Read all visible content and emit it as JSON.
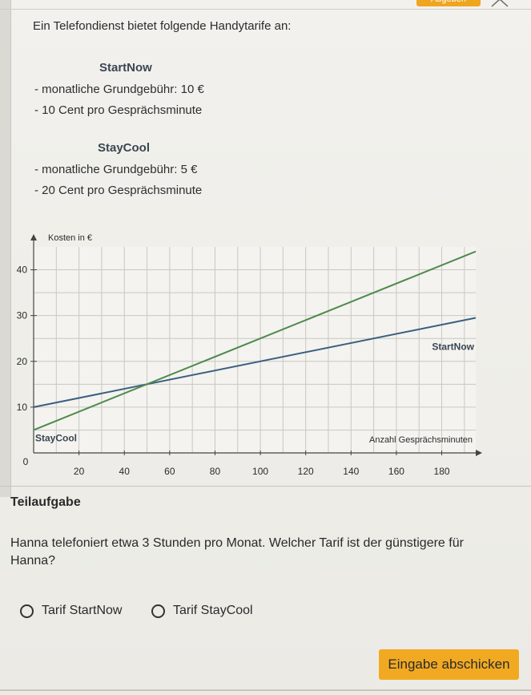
{
  "header": {
    "button_label": "Abgeben"
  },
  "task": {
    "intro": "Ein Telefondienst bietet folgende Handytarife an:",
    "tariffs": [
      {
        "name": "StartNow",
        "lines": [
          "- monatliche Grundgebühr: 10 €",
          "- 10 Cent pro Gesprächsminute"
        ]
      },
      {
        "name": "StayCool",
        "lines": [
          "- monatliche Grundgebühr: 5 €",
          "- 20 Cent pro Gesprächsminute"
        ]
      }
    ]
  },
  "chart_data": {
    "type": "line",
    "ylabel": "Kosten in €",
    "xlabel": "Anzahl Gesprächsminuten",
    "xlim": [
      0,
      195
    ],
    "ylim": [
      0,
      45
    ],
    "x_ticks": [
      20,
      40,
      60,
      80,
      100,
      120,
      140,
      160,
      180
    ],
    "y_ticks": [
      10,
      20,
      30,
      40
    ],
    "origin_label": "0",
    "grid": true,
    "series": [
      {
        "name": "StartNow",
        "color": "#3b5f80",
        "x": [
          0,
          200
        ],
        "y": [
          10,
          30
        ]
      },
      {
        "name": "StayCool",
        "color": "#4e8a4e",
        "x": [
          0,
          200
        ],
        "y": [
          5,
          45
        ]
      }
    ]
  },
  "question": {
    "heading": "Teilaufgabe",
    "text": "Hanna telefoniert etwa 3 Stunden pro Monat. Welcher Tarif ist der günstigere für Hanna?",
    "options": [
      {
        "label": "Tarif StartNow",
        "selected": false
      },
      {
        "label": "Tarif StayCool",
        "selected": false
      }
    ],
    "submit_label": "Eingabe abschicken"
  },
  "colors": {
    "accent": "#f2a922"
  }
}
